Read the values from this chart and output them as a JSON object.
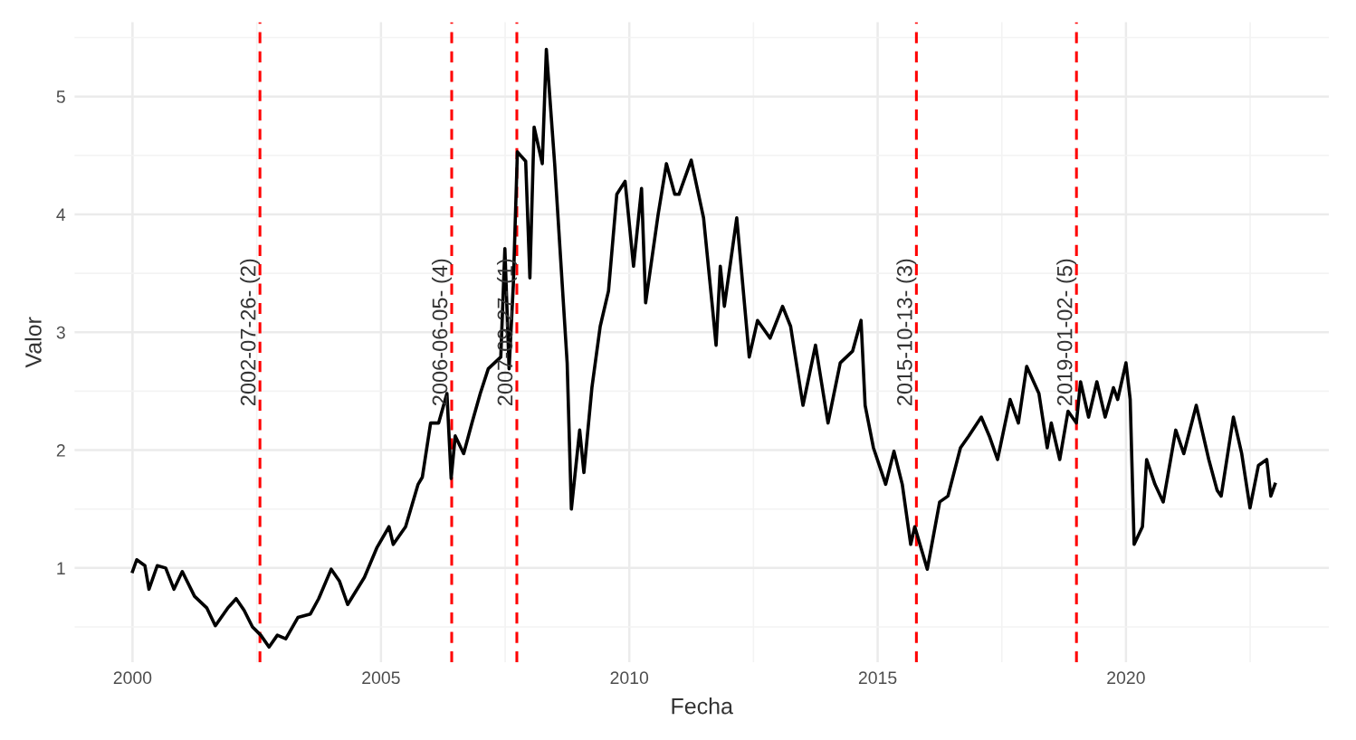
{
  "chart_data": {
    "type": "line",
    "xlabel": "Fecha",
    "ylabel": "Valor",
    "x": [
      "2000-01",
      "2000-02",
      "2000-04",
      "2000-05",
      "2000-07",
      "2000-09",
      "2000-11",
      "2001-01",
      "2001-04",
      "2001-07",
      "2001-09",
      "2001-12",
      "2002-02",
      "2002-04",
      "2002-06",
      "2002-08",
      "2002-10",
      "2002-12",
      "2003-02",
      "2003-05",
      "2003-08",
      "2003-10",
      "2004-01",
      "2004-03",
      "2004-05",
      "2004-09",
      "2004-12",
      "2005-03",
      "2005-04",
      "2005-07",
      "2005-10",
      "2005-11",
      "2006-01",
      "2006-03",
      "2006-05",
      "2006-06",
      "2006-07",
      "2006-09",
      "2006-11",
      "2007-01",
      "2007-03",
      "2007-06",
      "2007-07",
      "2007-08",
      "2007-09",
      "2007-10",
      "2007-12",
      "2008-01",
      "2008-02",
      "2008-04",
      "2008-05",
      "2008-07",
      "2008-10",
      "2008-11",
      "2009-01",
      "2009-02",
      "2009-04",
      "2009-06",
      "2009-08",
      "2009-10",
      "2009-12",
      "2010-02",
      "2010-04",
      "2010-05",
      "2010-08",
      "2010-10",
      "2010-12",
      "2011-01",
      "2011-04",
      "2011-07",
      "2011-09",
      "2011-10",
      "2011-11",
      "2011-12",
      "2012-03",
      "2012-06",
      "2012-08",
      "2012-11",
      "2013-02",
      "2013-04",
      "2013-07",
      "2013-10",
      "2014-01",
      "2014-04",
      "2014-07",
      "2014-09",
      "2014-10",
      "2014-12",
      "2015-03",
      "2015-05",
      "2015-07",
      "2015-09",
      "2015-10",
      "2016-01",
      "2016-04",
      "2016-06",
      "2016-09",
      "2016-11",
      "2017-02",
      "2017-04",
      "2017-06",
      "2017-09",
      "2017-11",
      "2018-01",
      "2018-04",
      "2018-06",
      "2018-07",
      "2018-09",
      "2018-11",
      "2019-01",
      "2019-02",
      "2019-04",
      "2019-06",
      "2019-08",
      "2019-10",
      "2019-11",
      "2020-01",
      "2020-02",
      "2020-03",
      "2020-05",
      "2020-06",
      "2020-08",
      "2020-10",
      "2021-01",
      "2021-03",
      "2021-06",
      "2021-09",
      "2021-11",
      "2021-12",
      "2022-03",
      "2022-05",
      "2022-07",
      "2022-09",
      "2022-11",
      "2022-12",
      "2023-01"
    ],
    "series": [
      {
        "color": "#000000",
        "values": [
          0.97,
          1.07,
          1.02,
          0.82,
          1.02,
          1.0,
          0.82,
          0.97,
          0.76,
          0.66,
          0.51,
          0.66,
          0.74,
          0.64,
          0.5,
          0.43,
          0.33,
          0.43,
          0.4,
          0.58,
          0.61,
          0.74,
          0.99,
          0.89,
          0.69,
          0.92,
          1.17,
          1.35,
          1.2,
          1.35,
          1.71,
          1.77,
          2.23,
          2.23,
          2.48,
          1.76,
          2.12,
          1.97,
          2.23,
          2.48,
          2.69,
          2.79,
          3.71,
          2.69,
          3.4,
          4.53,
          4.45,
          3.46,
          4.74,
          4.43,
          5.4,
          4.43,
          2.74,
          1.5,
          2.17,
          1.81,
          2.53,
          3.05,
          3.35,
          4.17,
          4.28,
          3.56,
          4.22,
          3.25,
          4.0,
          4.43,
          4.17,
          4.17,
          4.46,
          3.97,
          3.25,
          2.89,
          3.56,
          3.22,
          3.97,
          2.79,
          3.1,
          2.95,
          3.22,
          3.05,
          2.38,
          2.89,
          2.23,
          2.74,
          2.84,
          3.1,
          2.38,
          2.02,
          1.71,
          1.99,
          1.71,
          1.2,
          1.35,
          0.99,
          1.56,
          1.61,
          2.02,
          2.12,
          2.28,
          2.12,
          1.92,
          2.43,
          2.23,
          2.71,
          2.48,
          2.02,
          2.23,
          1.92,
          2.33,
          2.23,
          2.58,
          2.28,
          2.58,
          2.28,
          2.53,
          2.43,
          2.74,
          2.43,
          1.2,
          1.35,
          1.92,
          1.71,
          1.56,
          2.17,
          1.97,
          2.38,
          1.92,
          1.66,
          1.61,
          2.28,
          1.97,
          1.51,
          1.87,
          1.92,
          1.61,
          1.71
        ]
      }
    ],
    "xlim": [
      "1998-11",
      "2024-02"
    ],
    "xticks": [
      "2000",
      "2005",
      "2010",
      "2015",
      "2020"
    ],
    "ylim": [
      0.2,
      5.63
    ],
    "yticks": [
      1,
      2,
      3,
      4,
      5
    ],
    "ref_lines": [
      {
        "axis": "x",
        "value": "2002-07-26",
        "label": "2002-07-26- (2)",
        "color": "#ff0000",
        "line_style": "dashed"
      },
      {
        "axis": "x",
        "value": "2006-06-05",
        "label": "2006-06-05- (4)",
        "color": "#ff0000",
        "line_style": "dashed"
      },
      {
        "axis": "x",
        "value": "2007-09-27",
        "label": "2007-09-27- (1)",
        "color": "#ff0000",
        "line_style": "dashed"
      },
      {
        "axis": "x",
        "value": "2015-10-13",
        "label": "2015-10-13- (3)",
        "color": "#ff0000",
        "line_style": "dashed"
      },
      {
        "axis": "x",
        "value": "2019-01-02",
        "label": "2019-01-02- (5)",
        "color": "#ff0000",
        "line_style": "dashed"
      }
    ],
    "grid": true,
    "line_style": "solid"
  }
}
